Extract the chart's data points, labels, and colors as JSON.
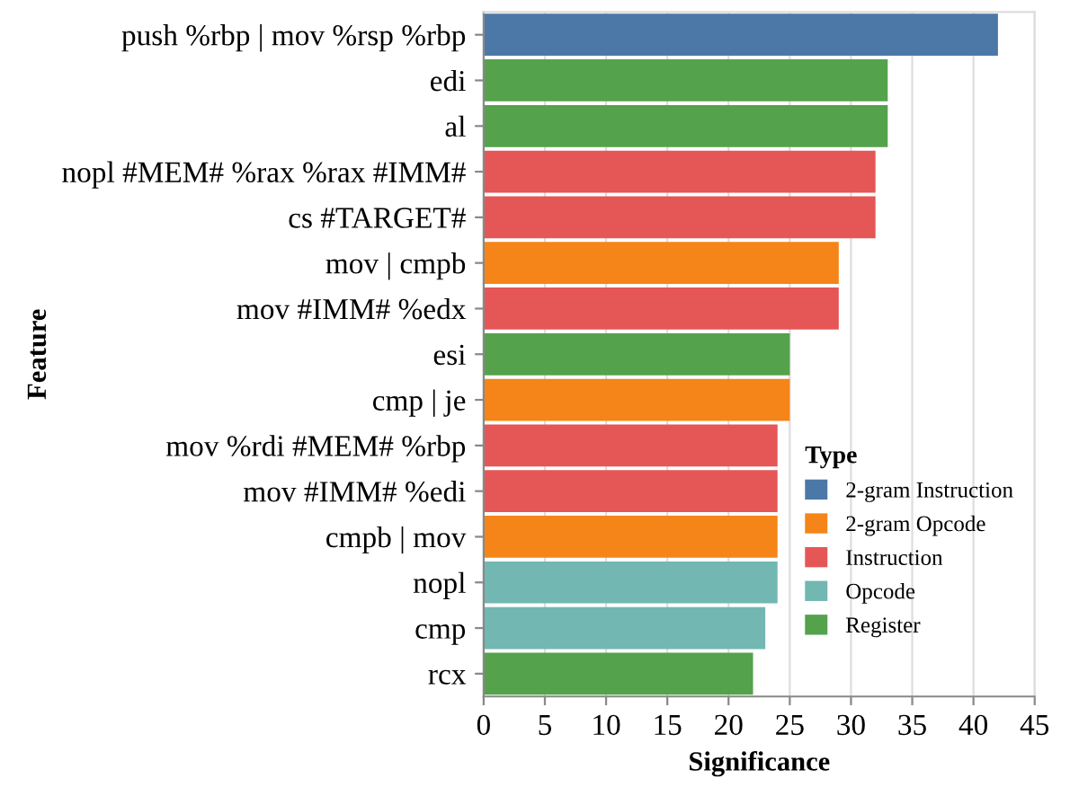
{
  "chart_data": {
    "type": "bar",
    "orientation": "horizontal",
    "xlabel": "Significance",
    "ylabel": "Feature",
    "legend_title": "Type",
    "legend": "bottom right",
    "grid": "x",
    "categories": [
      "push %rbp | mov %rsp %rbp",
      "edi",
      "al",
      "nopl #MEM# %rax %rax #IMM#",
      "cs #TARGET#",
      "mov | cmpb",
      "mov #IMM# %edx",
      "esi",
      "cmp | je",
      "mov %rdi #MEM# %rbp",
      "mov #IMM# %edi",
      "cmpb | mov",
      "nopl",
      "cmp",
      "rcx"
    ],
    "xlim": [
      0,
      45
    ],
    "xticks": [
      0,
      5,
      10,
      15,
      20,
      25,
      30,
      35,
      40,
      45
    ],
    "series": [
      {
        "name": "2-gram Instruction",
        "color": "#4c78a8",
        "values": [
          42,
          null,
          null,
          null,
          null,
          null,
          null,
          null,
          null,
          null,
          null,
          null,
          null,
          null,
          null
        ]
      },
      {
        "name": "2-gram Opcode",
        "color": "#f58518",
        "values": [
          null,
          null,
          null,
          null,
          null,
          29,
          null,
          null,
          25,
          null,
          null,
          24,
          null,
          null,
          null
        ]
      },
      {
        "name": "Instruction",
        "color": "#e45756",
        "values": [
          null,
          null,
          null,
          32,
          32,
          null,
          29,
          null,
          null,
          24,
          24,
          null,
          null,
          null,
          null
        ]
      },
      {
        "name": "Opcode",
        "color": "#72b7b2",
        "values": [
          null,
          null,
          null,
          null,
          null,
          null,
          null,
          null,
          null,
          null,
          null,
          null,
          24,
          23,
          null
        ]
      },
      {
        "name": "Register",
        "color": "#54a24b",
        "values": [
          null,
          33,
          33,
          null,
          null,
          null,
          null,
          25,
          null,
          null,
          null,
          null,
          null,
          null,
          22
        ]
      }
    ]
  }
}
